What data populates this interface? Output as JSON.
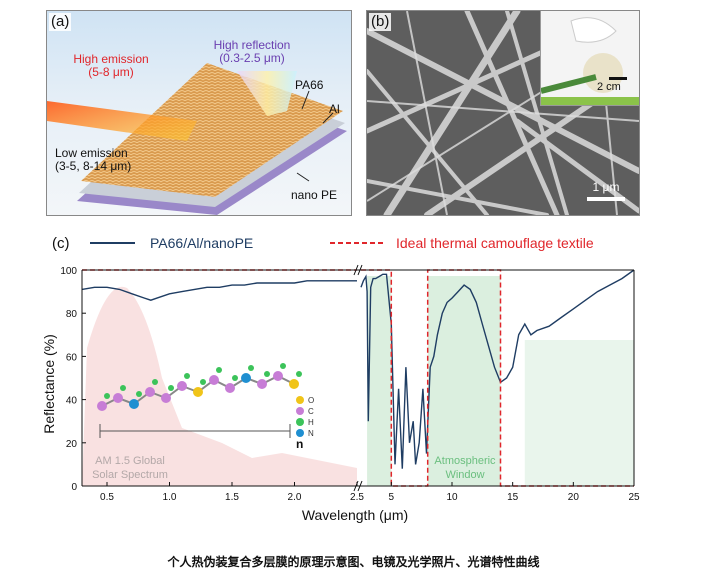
{
  "panel_a": {
    "label": "(a)",
    "high_emission": "High emission",
    "high_emission_range": "(5-8 μm)",
    "high_reflection": "High reflection",
    "high_reflection_range": "(0.3-2.5 μm)",
    "low_emission": "Low emission",
    "low_emission_range": "(3-5, 8-14 μm)",
    "layer_pa66": "PA66",
    "layer_al": "Al",
    "layer_pe": "nano PE"
  },
  "panel_b": {
    "label": "(b)",
    "scale_main": "1 μm",
    "scale_inset": "2 cm"
  },
  "panel_c": {
    "label": "(c)",
    "legend_solid": "PA66/Al/nanoPE",
    "legend_dashed": "Ideal thermal camouflage textile",
    "solar_label_1": "AM 1.5 Global",
    "solar_label_2": "Solar Spectrum",
    "atm_label_1": "Atmospheric",
    "atm_label_2": "Window",
    "molecule_legend": [
      "O",
      "C",
      "H",
      "N"
    ],
    "molecule_n": "n"
  },
  "colors": {
    "measured": "#1f3d63",
    "ideal": "#e0262b",
    "solar_fill": "#f7d9d9",
    "atm_fill": "#cfe9d4"
  },
  "chart_data": {
    "type": "line",
    "xlabel": "Wavelength (μm)",
    "ylabel": "Reflectance (%)",
    "ylim": [
      0,
      100
    ],
    "x_axis_broken": true,
    "x_segment_1": {
      "range": [
        0.3,
        2.5
      ],
      "ticks": [
        "0.5",
        "1.0",
        "1.5",
        "2.0",
        "2.5"
      ]
    },
    "x_segment_2": {
      "range": [
        2.5,
        25
      ],
      "ticks": [
        "5",
        "10",
        "15",
        "20",
        "25"
      ]
    },
    "y_ticks": [
      "0",
      "20",
      "40",
      "60",
      "80",
      "100"
    ],
    "series": [
      {
        "name": "PA66/Al/nanoPE",
        "style": "solid",
        "segment_1": {
          "x": [
            0.3,
            0.4,
            0.5,
            0.6,
            0.7,
            0.8,
            0.85,
            0.9,
            1.0,
            1.1,
            1.2,
            1.3,
            1.4,
            1.5,
            1.6,
            1.7,
            1.8,
            1.9,
            2.0,
            2.1,
            2.2,
            2.3,
            2.4,
            2.5
          ],
          "y": [
            91,
            92,
            92,
            91,
            89,
            87,
            86,
            87,
            89,
            90,
            91,
            92,
            92,
            93,
            93,
            94,
            94,
            94,
            94,
            95,
            95,
            95,
            95,
            95
          ]
        },
        "segment_2": {
          "x": [
            2.5,
            2.7,
            2.9,
            3.0,
            3.1,
            3.3,
            3.5,
            3.7,
            4.0,
            4.3,
            4.6,
            5.0,
            5.3,
            5.6,
            5.9,
            6.2,
            6.5,
            6.8,
            7.0,
            7.3,
            7.6,
            7.9,
            8.2,
            8.5,
            8.8,
            9.2,
            9.6,
            10,
            10.5,
            11,
            11.5,
            12,
            12.5,
            13,
            13.5,
            14,
            14.5,
            15,
            15.5,
            16,
            16.5,
            17,
            18,
            19,
            20,
            21,
            22,
            23,
            24,
            25
          ],
          "y": [
            92,
            95,
            97,
            90,
            30,
            92,
            96,
            96,
            97,
            98,
            98,
            75,
            10,
            45,
            8,
            55,
            20,
            30,
            10,
            20,
            45,
            15,
            55,
            60,
            70,
            80,
            85,
            87,
            90,
            93,
            91,
            85,
            75,
            65,
            55,
            48,
            50,
            55,
            70,
            75,
            70,
            72,
            74,
            78,
            82,
            86,
            90,
            93,
            96,
            100
          ]
        }
      },
      {
        "name": "Ideal thermal camouflage textile",
        "style": "dashed",
        "segment_1": {
          "x": [
            0.3,
            2.5
          ],
          "y": [
            100,
            100
          ]
        },
        "segment_2": {
          "x": [
            2.5,
            5,
            5,
            8,
            8,
            14,
            14,
            25
          ],
          "y": [
            100,
            100,
            0,
            0,
            100,
            100,
            0,
            0
          ]
        }
      }
    ]
  },
  "caption": "个人热伪装复合多层膜的原理示意图、电镜及光学照片、光谱特性曲线"
}
